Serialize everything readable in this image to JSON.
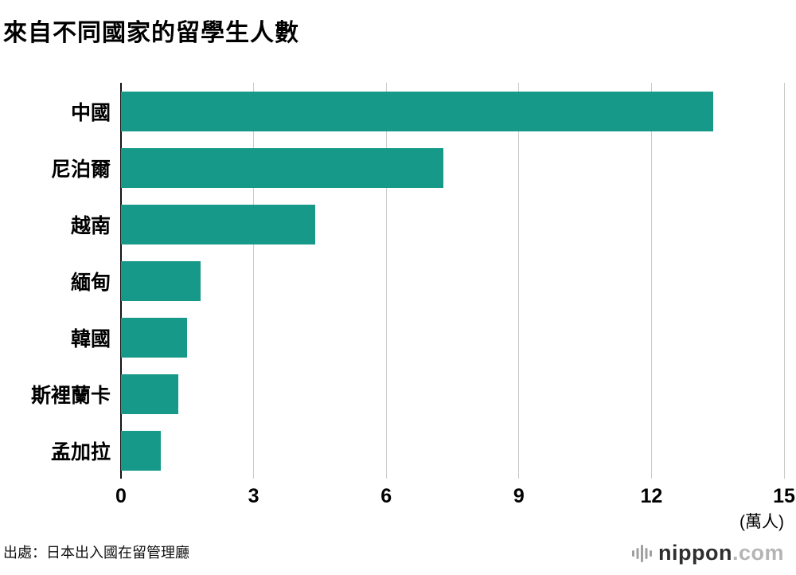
{
  "title": "來自不同國家的留學生人數",
  "chart_data": {
    "type": "bar",
    "orientation": "horizontal",
    "title": "來自不同國家的留學生人數",
    "categories": [
      "中國",
      "尼泊爾",
      "越南",
      "緬甸",
      "韓國",
      "斯裡蘭卡",
      "孟加拉"
    ],
    "values": [
      13.4,
      7.3,
      4.4,
      1.8,
      1.5,
      1.3,
      0.9
    ],
    "x_ticks": [
      0,
      3,
      6,
      9,
      12,
      15
    ],
    "xlim": [
      0,
      15
    ],
    "unit_label": "(萬人)",
    "bar_color": "#17998a",
    "grid": true,
    "gridline_color": "#c9c9c9",
    "axis_line_color": "#141414",
    "legend": "none"
  },
  "source": "出處：日本出入國在留管理廳",
  "logo": {
    "name": "nippon",
    "tld": ".com",
    "icon": "soundwave-bars-icon",
    "icon_color": "#a0a0a0"
  }
}
